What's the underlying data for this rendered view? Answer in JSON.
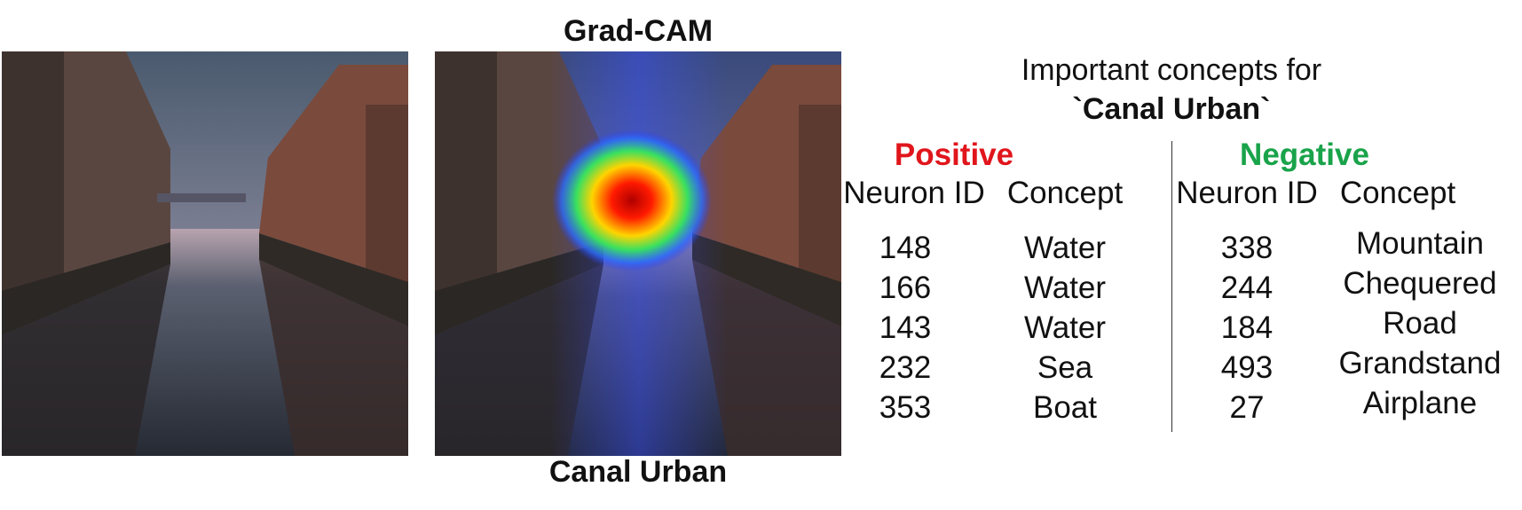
{
  "gradcam_title": "Grad-CAM",
  "bottom_caption": "Canal Urban",
  "panel": {
    "heading_line1": "Important concepts for",
    "heading_line2": "`Canal Urban`",
    "positive": {
      "title": "Positive",
      "title_color": "#e0161c",
      "headers": [
        "Neuron ID",
        "Concept"
      ],
      "rows": [
        {
          "id": "148",
          "concept": "Water"
        },
        {
          "id": "166",
          "concept": "Water"
        },
        {
          "id": "143",
          "concept": "Water"
        },
        {
          "id": "232",
          "concept": "Sea"
        },
        {
          "id": "353",
          "concept": "Boat"
        }
      ]
    },
    "negative": {
      "title": "Negative",
      "title_color": "#19a34a",
      "headers": [
        "Neuron ID",
        "Concept"
      ],
      "rows": [
        {
          "id": "338",
          "concept": "Mountain"
        },
        {
          "id": "244",
          "concept": "Chequered"
        },
        {
          "id": "184",
          "concept": "Road"
        },
        {
          "id": "493",
          "concept": "Grandstand"
        },
        {
          "id": "27",
          "concept": "Airplane"
        }
      ]
    }
  }
}
